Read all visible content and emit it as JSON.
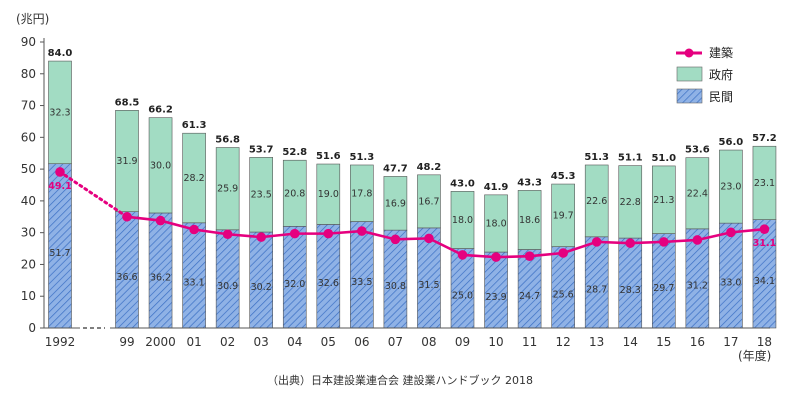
{
  "chart_data": {
    "type": "bar",
    "y_unit": "(兆円)",
    "x_unit": "(年度)",
    "ylim": [
      0,
      90
    ],
    "yticks": [
      0,
      10,
      20,
      30,
      40,
      50,
      60,
      70,
      80,
      90
    ],
    "categories": [
      "1992",
      "99",
      "2000",
      "01",
      "02",
      "03",
      "04",
      "05",
      "06",
      "07",
      "08",
      "09",
      "10",
      "11",
      "12",
      "13",
      "14",
      "15",
      "16",
      "17",
      "18"
    ],
    "series": [
      {
        "name": "民間",
        "kind": "bar",
        "stack": "bottom",
        "values": [
          51.7,
          36.6,
          36.2,
          33.1,
          30.9,
          30.2,
          32.0,
          32.6,
          33.5,
          30.8,
          31.5,
          25.0,
          23.9,
          24.7,
          25.6,
          28.7,
          28.3,
          29.7,
          31.2,
          33.0,
          34.1
        ]
      },
      {
        "name": "政府",
        "kind": "bar",
        "stack": "top",
        "values": [
          32.3,
          31.9,
          30.0,
          28.2,
          25.9,
          23.5,
          20.8,
          19.0,
          17.8,
          16.9,
          16.7,
          18.0,
          18.0,
          18.6,
          19.7,
          22.6,
          22.8,
          21.3,
          22.4,
          23.0,
          23.1
        ]
      },
      {
        "name": "建築",
        "kind": "line",
        "values": [
          49.1,
          35.0,
          33.8,
          31.0,
          29.5,
          28.6,
          29.7,
          29.7,
          30.5,
          27.9,
          28.2,
          23.0,
          22.3,
          22.6,
          23.6,
          27.1,
          26.7,
          27.1,
          27.7,
          30.1,
          31.1
        ]
      }
    ],
    "totals": [
      "84.0",
      "68.5",
      "66.2",
      "61.3",
      "56.8",
      "53.7",
      "52.8",
      "51.6",
      "51.3",
      "47.7",
      "48.2",
      "43.0",
      "41.9",
      "43.3",
      "45.3",
      "51.3",
      "51.1",
      "51.0",
      "53.6",
      "56.0",
      "57.2"
    ],
    "line_labels": [
      {
        "index": 0,
        "text": "49.1"
      },
      {
        "index": 20,
        "text": "31.1"
      }
    ],
    "legend_position": "top-right",
    "source": "（出典）日本建設業連合会 建設業ハンドブック 2018",
    "colors": {
      "private": "#8fb2e6",
      "private_hatch": "#3a6fc4",
      "government": "#a2dcc3",
      "line": "#e5007f",
      "axis": "#555555"
    }
  }
}
